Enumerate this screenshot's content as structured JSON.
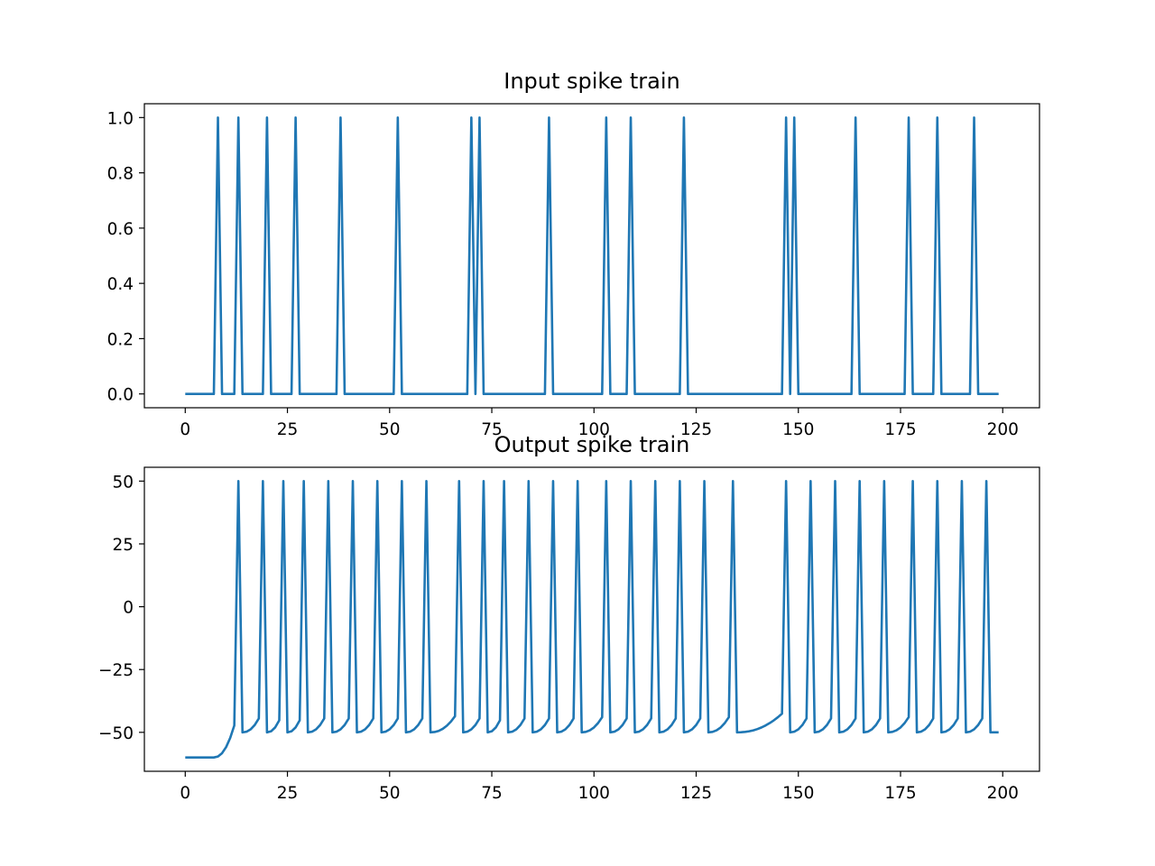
{
  "chart_data": [
    {
      "type": "line",
      "title": "Input spike train",
      "xlabel": "",
      "ylabel": "",
      "xlim": [
        -10,
        209
      ],
      "ylim": [
        -0.05,
        1.05
      ],
      "x_ticks": [
        0,
        25,
        50,
        75,
        100,
        125,
        150,
        175,
        200
      ],
      "y_ticks": [
        0.0,
        0.2,
        0.4,
        0.6,
        0.8,
        1.0
      ],
      "x_tick_labels": [
        "0",
        "25",
        "50",
        "75",
        "100",
        "125",
        "150",
        "175",
        "200"
      ],
      "y_tick_labels": [
        "0.0",
        "0.2",
        "0.4",
        "0.6",
        "0.8",
        "1.0"
      ],
      "grid": false,
      "color": "#1f77b4",
      "spike_times": [
        8,
        13,
        20,
        27,
        38,
        52,
        70,
        72,
        89,
        103,
        109,
        122,
        147,
        149,
        164,
        177,
        184,
        193
      ],
      "baseline": 0,
      "peak": 1,
      "x_range": [
        0,
        199
      ]
    },
    {
      "type": "line",
      "title": "Output spike train",
      "xlabel": "",
      "ylabel": "",
      "xlim": [
        -10,
        209
      ],
      "ylim": [
        -65.5,
        55.5
      ],
      "x_ticks": [
        0,
        25,
        50,
        75,
        100,
        125,
        150,
        175,
        200
      ],
      "y_ticks": [
        -50,
        -25,
        0,
        25,
        50
      ],
      "x_tick_labels": [
        "0",
        "25",
        "50",
        "75",
        "100",
        "125",
        "150",
        "175",
        "200"
      ],
      "y_tick_labels": [
        "−50",
        "−25",
        "0",
        "25",
        "50"
      ],
      "grid": false,
      "color": "#1f77b4",
      "spike_times": [
        13,
        19,
        24,
        29,
        35,
        41,
        47,
        53,
        59,
        67,
        73,
        78,
        84,
        90,
        96,
        103,
        109,
        115,
        121,
        127,
        134,
        147,
        153,
        159,
        165,
        171,
        178,
        184,
        190,
        196
      ],
      "rest_potential": -60,
      "reset_potential": -50,
      "spike_peak": 50,
      "x_range": [
        0,
        199
      ]
    }
  ]
}
